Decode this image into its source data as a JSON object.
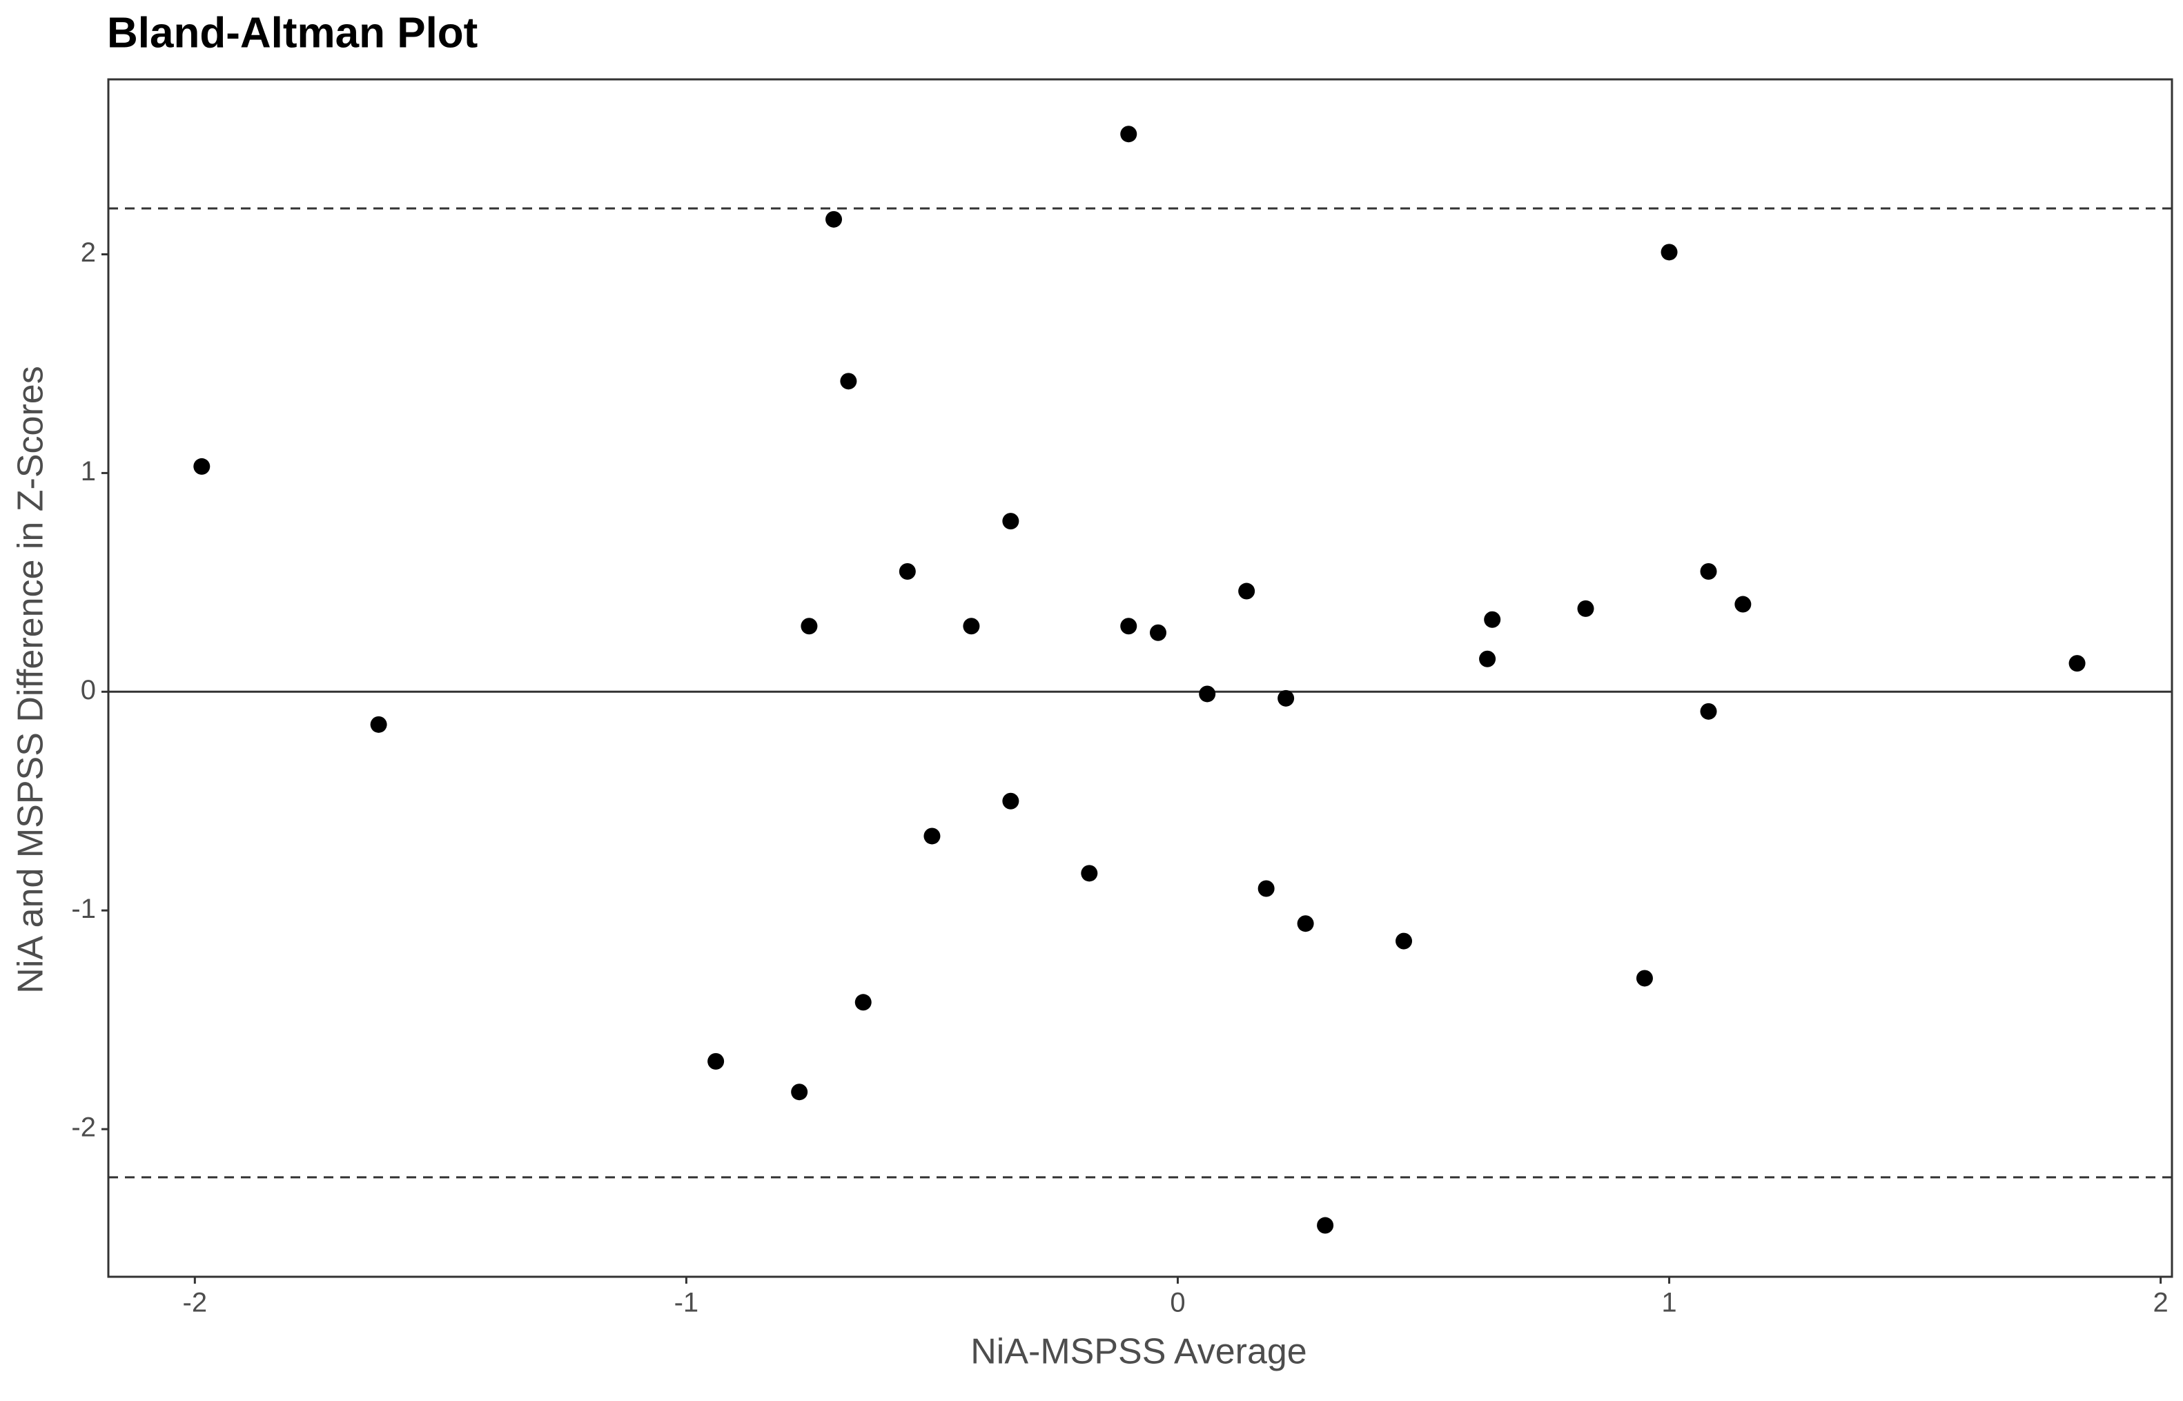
{
  "chart_data": {
    "type": "scatter",
    "title": "Bland-Altman Plot",
    "x_label": "NiA-MSPSS Average",
    "y_label": "NiA and MSPSS Difference in Z-Scores",
    "x": [
      -1.986,
      -1.626,
      -0.94,
      -0.77,
      -0.75,
      -0.7,
      -0.67,
      -0.64,
      -0.55,
      -0.5,
      -0.42,
      -0.34,
      -0.34,
      -0.18,
      -0.1,
      -0.1,
      -0.04,
      0.06,
      0.14,
      0.18,
      0.22,
      0.26,
      0.3,
      0.46,
      0.63,
      0.64,
      0.83,
      0.95,
      1.0,
      1.08,
      1.08,
      1.15,
      1.83
    ],
    "values": [
      1.03,
      -0.15,
      -1.69,
      -1.83,
      0.3,
      2.16,
      1.42,
      -1.42,
      0.55,
      -0.66,
      0.3,
      0.78,
      -0.5,
      -0.83,
      2.55,
      0.3,
      0.27,
      -0.01,
      0.46,
      -0.9,
      -0.03,
      -1.06,
      -2.44,
      -1.14,
      0.15,
      0.33,
      0.38,
      -1.31,
      2.01,
      0.55,
      -0.09,
      0.4,
      0.13
    ],
    "color": "#000000",
    "hlines": [
      {
        "value": 2.21,
        "style": "dashed"
      },
      {
        "value": 0,
        "style": "solid"
      },
      {
        "value": -2.22,
        "style": "dashed"
      }
    ],
    "xlim": [
      -2.176,
      2.023
    ],
    "ylim": [
      -2.675,
      2.8
    ],
    "xticks": [
      -2,
      -1,
      0,
      1,
      2
    ],
    "yticks": [
      -2,
      -1,
      0,
      1,
      2
    ],
    "grid": false
  }
}
